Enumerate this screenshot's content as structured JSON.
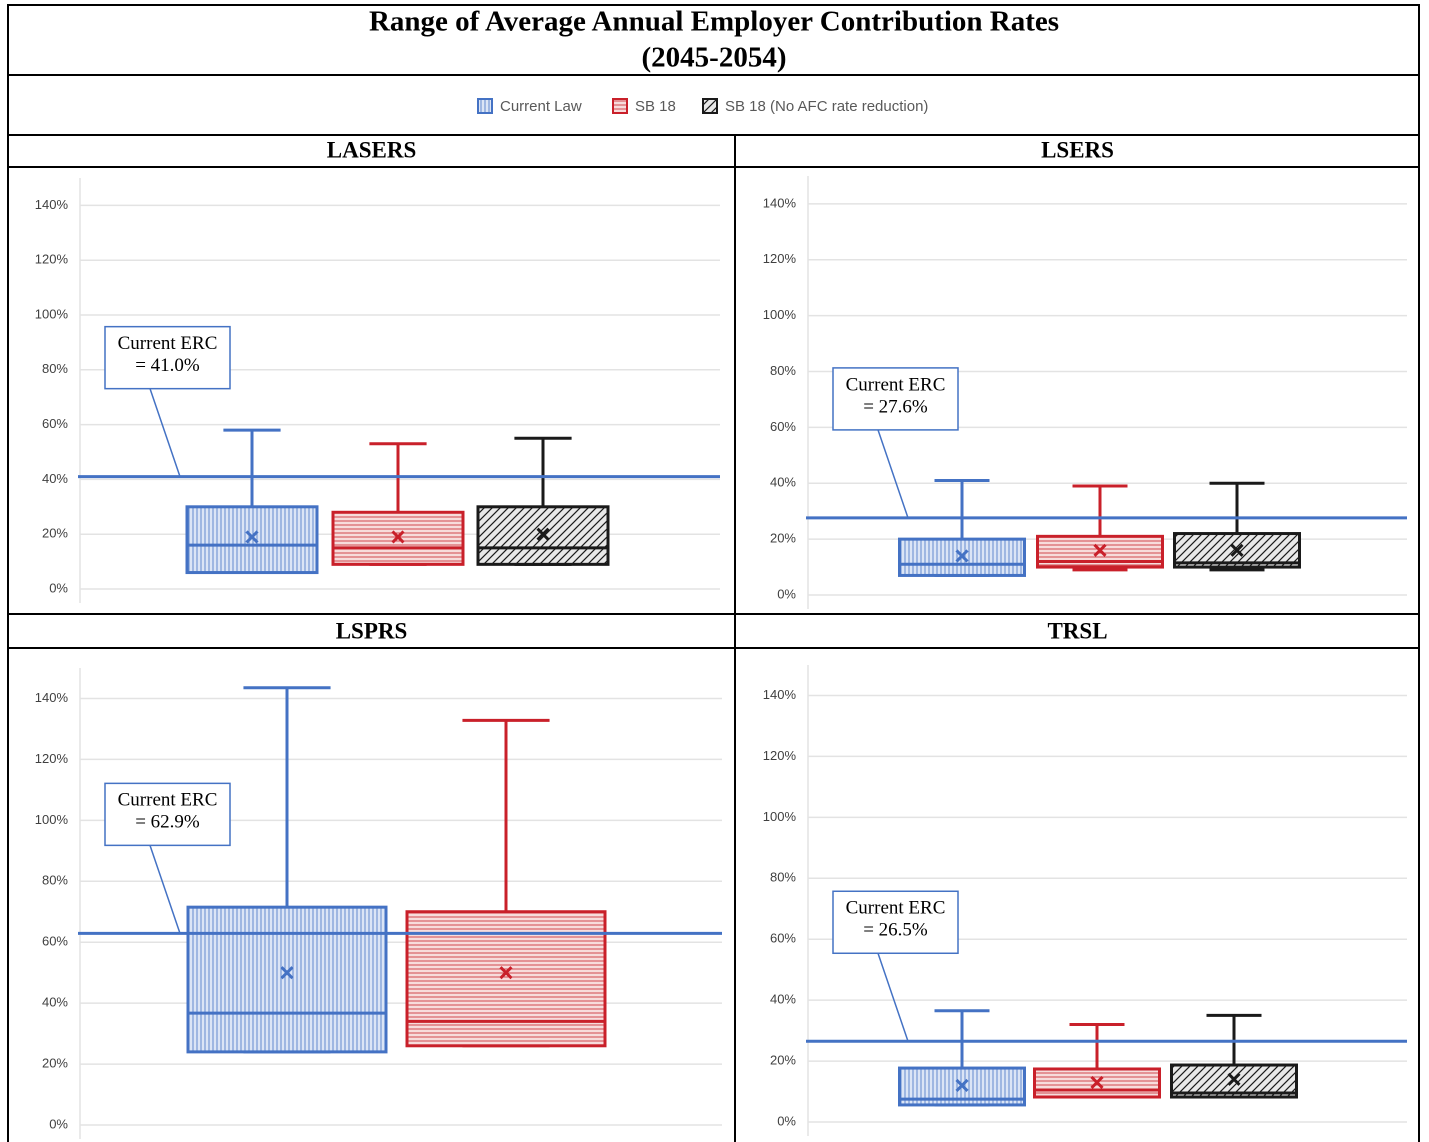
{
  "title": "Range of Average Annual Employer Contribution Rates",
  "subtitle": "(2045-2054)",
  "chart_data": [
    {
      "type": "box",
      "title": "LASERS",
      "ylim": [
        0,
        150
      ],
      "yticks": [
        {
          "value": 0,
          "label": "0%"
        },
        {
          "value": 20,
          "label": "20%"
        },
        {
          "value": 40,
          "label": "40%"
        },
        {
          "value": 60,
          "label": "60%"
        },
        {
          "value": 80,
          "label": "80%"
        },
        {
          "value": 100,
          "label": "100%"
        },
        {
          "value": 120,
          "label": "120%"
        },
        {
          "value": 140,
          "label": "140%"
        }
      ],
      "grid": true,
      "reference": {
        "value": 41.0,
        "color": "#4472c4",
        "lines": [
          "Current ERC",
          "= 41.0%"
        ]
      },
      "series": [
        {
          "name": "Current Law",
          "color": "#4472c4",
          "pattern": "vertical",
          "min": 6,
          "q1": 6,
          "median": 16,
          "q3": 30,
          "max": 58,
          "mean": 19
        },
        {
          "name": "SB 18",
          "color": "#c9202a",
          "pattern": "horizontal",
          "min": 9,
          "q1": 9,
          "median": 15,
          "q3": 28,
          "max": 53,
          "mean": 19
        },
        {
          "name": "SB 18 (No AFC rate reduction)",
          "color": "#1a1a1a",
          "pattern": "diagonal",
          "min": 9,
          "q1": 9,
          "median": 15,
          "q3": 30,
          "max": 55,
          "mean": 20
        }
      ]
    },
    {
      "type": "box",
      "title": "LSERS",
      "ylim": [
        0,
        150
      ],
      "yticks": [
        {
          "value": 0,
          "label": "0%"
        },
        {
          "value": 20,
          "label": "20%"
        },
        {
          "value": 40,
          "label": "40%"
        },
        {
          "value": 60,
          "label": "60%"
        },
        {
          "value": 80,
          "label": "80%"
        },
        {
          "value": 100,
          "label": "100%"
        },
        {
          "value": 120,
          "label": "120%"
        },
        {
          "value": 140,
          "label": "140%"
        }
      ],
      "grid": true,
      "reference": {
        "value": 27.6,
        "color": "#4472c4",
        "lines": [
          "Current ERC",
          "= 27.6%"
        ]
      },
      "series": [
        {
          "name": "Current Law",
          "color": "#4472c4",
          "pattern": "vertical",
          "min": 7,
          "q1": 7,
          "median": 11,
          "q3": 20,
          "max": 41,
          "mean": 14
        },
        {
          "name": "SB 18",
          "color": "#c9202a",
          "pattern": "horizontal",
          "min": 9,
          "q1": 10,
          "median": 12,
          "q3": 21,
          "max": 39,
          "mean": 16
        },
        {
          "name": "SB 18 (No AFC rate reduction)",
          "color": "#1a1a1a",
          "pattern": "diagonal",
          "min": 9,
          "q1": 10,
          "median": 11.5,
          "q3": 22,
          "max": 40,
          "mean": 16
        }
      ]
    },
    {
      "type": "box",
      "title": "LSPRS",
      "ylim": [
        0,
        150
      ],
      "yticks": [
        {
          "value": 0,
          "label": "0%"
        },
        {
          "value": 20,
          "label": "20%"
        },
        {
          "value": 40,
          "label": "40%"
        },
        {
          "value": 60,
          "label": "60%"
        },
        {
          "value": 80,
          "label": "80%"
        },
        {
          "value": 100,
          "label": "100%"
        },
        {
          "value": 120,
          "label": "120%"
        },
        {
          "value": 140,
          "label": "140%"
        }
      ],
      "grid": true,
      "reference": {
        "value": 62.9,
        "color": "#4472c4",
        "lines": [
          "Current ERC",
          "= 62.9%"
        ]
      },
      "series": [
        {
          "name": "Current Law",
          "color": "#4472c4",
          "pattern": "vertical",
          "min": 24,
          "q1": 24,
          "median": 36.7,
          "q3": 71.5,
          "max": 143.5,
          "mean": 50
        },
        {
          "name": "SB 18",
          "color": "#c9202a",
          "pattern": "horizontal",
          "min": 26,
          "q1": 26,
          "median": 34,
          "q3": 70,
          "max": 132.8,
          "mean": 50
        }
      ]
    },
    {
      "type": "box",
      "title": "TRSL",
      "ylim": [
        0,
        150
      ],
      "yticks": [
        {
          "value": 0,
          "label": "0%"
        },
        {
          "value": 20,
          "label": "20%"
        },
        {
          "value": 40,
          "label": "40%"
        },
        {
          "value": 60,
          "label": "60%"
        },
        {
          "value": 80,
          "label": "80%"
        },
        {
          "value": 100,
          "label": "100%"
        },
        {
          "value": 120,
          "label": "120%"
        },
        {
          "value": 140,
          "label": "140%"
        }
      ],
      "grid": true,
      "reference": {
        "value": 26.5,
        "color": "#4472c4",
        "lines": [
          "Current ERC",
          "= 26.5%"
        ]
      },
      "series": [
        {
          "name": "Current Law",
          "color": "#4472c4",
          "pattern": "vertical",
          "min": 5.6,
          "q1": 5.6,
          "median": 7.5,
          "q3": 17.7,
          "max": 36.5,
          "mean": 12
        },
        {
          "name": "SB 18",
          "color": "#c9202a",
          "pattern": "horizontal",
          "min": 8.2,
          "q1": 8.2,
          "median": 10.5,
          "q3": 17.4,
          "max": 32,
          "mean": 13
        },
        {
          "name": "SB 18 (No AFC rate reduction)",
          "color": "#1a1a1a",
          "pattern": "diagonal",
          "min": 8.2,
          "q1": 8.2,
          "median": 9.5,
          "q3": 18.7,
          "max": 35,
          "mean": 14
        }
      ]
    }
  ]
}
